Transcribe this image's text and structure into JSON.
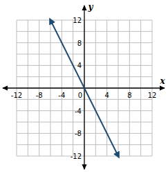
{
  "chart_data": {
    "type": "line",
    "x_label": "x",
    "y_label": "y",
    "x": [
      -6,
      6
    ],
    "values": [
      12,
      -12
    ],
    "color": "#1f4b73",
    "xlim": [
      -12,
      12
    ],
    "ylim": [
      -12,
      12
    ],
    "xticks": [
      -12,
      -8,
      -4,
      0,
      4,
      8,
      12
    ],
    "yticks": [
      -12,
      -8,
      -4,
      4,
      8,
      12
    ],
    "grid": true
  }
}
